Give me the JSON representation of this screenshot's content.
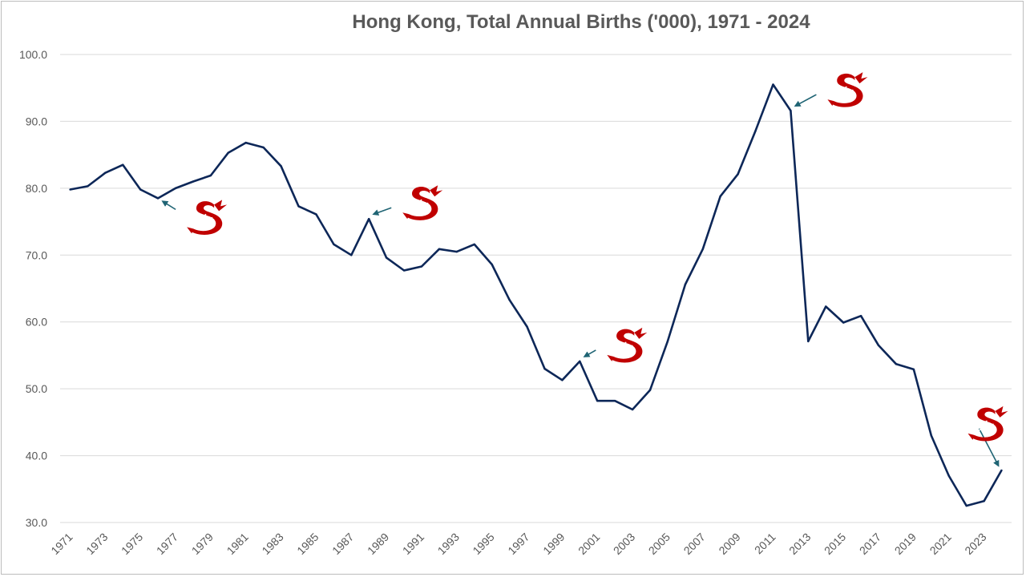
{
  "chart_data": {
    "type": "line",
    "title": "Hong Kong, Total Annual Births ('000), 1971 - 2024",
    "xlabel": "",
    "ylabel": "",
    "ylim": [
      30,
      100
    ],
    "y_ticks": [
      "30.0",
      "40.0",
      "50.0",
      "60.0",
      "70.0",
      "80.0",
      "90.0",
      "100.0"
    ],
    "x_tick_labels": [
      "1971",
      "1973",
      "1975",
      "1977",
      "1979",
      "1981",
      "1983",
      "1985",
      "1987",
      "1989",
      "1991",
      "1993",
      "1995",
      "1997",
      "1999",
      "2001",
      "2003",
      "2005",
      "2007",
      "2009",
      "2011",
      "2013",
      "2015",
      "2017",
      "2019",
      "2021",
      "2023"
    ],
    "grid": true,
    "legend": "none",
    "line_color": "#0d2758",
    "x": [
      1971,
      1972,
      1973,
      1974,
      1975,
      1976,
      1977,
      1978,
      1979,
      1980,
      1981,
      1982,
      1983,
      1984,
      1985,
      1986,
      1987,
      1988,
      1989,
      1990,
      1991,
      1992,
      1993,
      1994,
      1995,
      1996,
      1997,
      1998,
      1999,
      2000,
      2001,
      2002,
      2003,
      2004,
      2005,
      2006,
      2007,
      2008,
      2009,
      2010,
      2011,
      2012,
      2013,
      2014,
      2015,
      2016,
      2017,
      2018,
      2019,
      2020,
      2021,
      2022,
      2023,
      2024
    ],
    "values": [
      79.8,
      80.3,
      82.3,
      83.5,
      79.8,
      78.5,
      80.0,
      81.0,
      81.9,
      85.3,
      86.8,
      86.1,
      83.3,
      77.3,
      76.1,
      71.6,
      70.0,
      75.4,
      69.6,
      67.7,
      68.3,
      70.9,
      70.5,
      71.6,
      68.6,
      63.3,
      59.3,
      53.0,
      51.3,
      54.1,
      48.2,
      48.2,
      46.9,
      49.8,
      57.1,
      65.6,
      70.9,
      78.8,
      82.1,
      88.6,
      95.5,
      91.6,
      57.1,
      62.3,
      59.9,
      60.9,
      56.5,
      53.7,
      52.9,
      43.0,
      37.0,
      32.5,
      33.2,
      37.8
    ],
    "annotations": [
      {
        "label": "dragon-year",
        "year": 1976,
        "color": "#c00000"
      },
      {
        "label": "dragon-year",
        "year": 1988,
        "color": "#c00000"
      },
      {
        "label": "dragon-year",
        "year": 2000,
        "color": "#c00000"
      },
      {
        "label": "dragon-year",
        "year": 2012,
        "color": "#c00000"
      },
      {
        "label": "dragon-year",
        "year": 2024,
        "color": "#c00000"
      }
    ],
    "colors": {
      "gridline": "#d9d9d9",
      "text": "#595959",
      "arrow": "#1f6474",
      "dragon": "#c00000"
    }
  }
}
